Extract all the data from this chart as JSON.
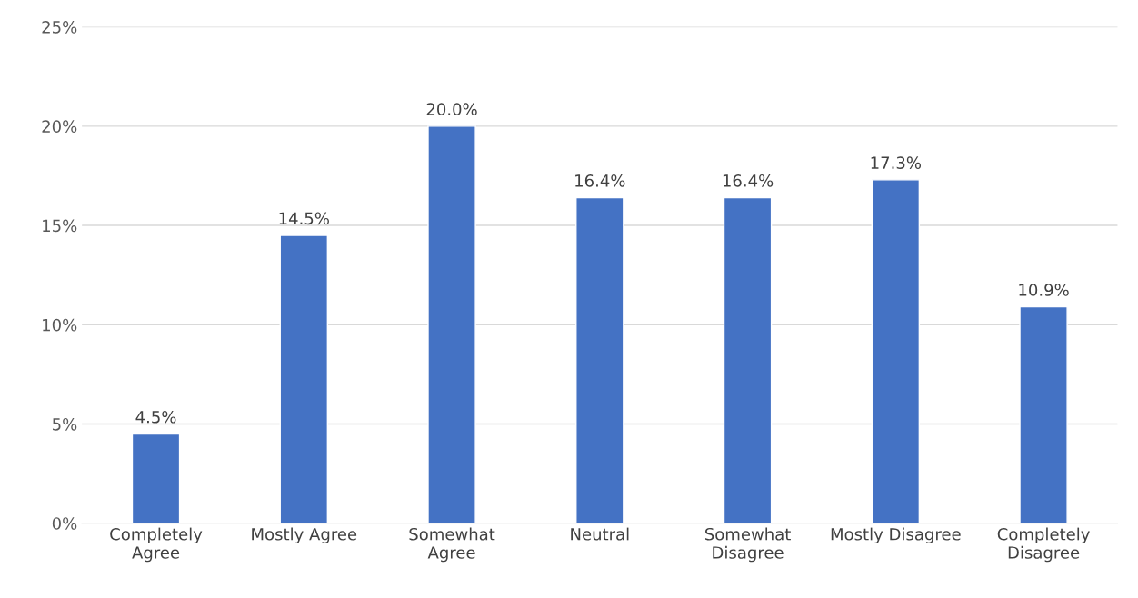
{
  "chart_data": {
    "type": "bar",
    "categories": [
      "Completely\nAgree",
      "Mostly Agree",
      "Somewhat\nAgree",
      "Neutral",
      "Somewhat\nDisagree",
      "Mostly Disagree",
      "Completely\nDisagree"
    ],
    "values": [
      4.5,
      14.5,
      20.0,
      16.4,
      16.4,
      17.3,
      10.9
    ],
    "value_labels": [
      "4.5%",
      "14.5%",
      "20.0%",
      "16.4%",
      "16.4%",
      "17.3%",
      "10.9%"
    ],
    "color": "#4472c4",
    "ylim": [
      0,
      25
    ],
    "yticks": [
      {
        "value": 0,
        "label": "0%"
      },
      {
        "value": 5,
        "label": "5%"
      },
      {
        "value": 10,
        "label": "10%"
      },
      {
        "value": 15,
        "label": "15%"
      },
      {
        "value": 20,
        "label": "20%"
      },
      {
        "value": 25,
        "label": "25%"
      }
    ],
    "grid": "y",
    "legend": false
  }
}
